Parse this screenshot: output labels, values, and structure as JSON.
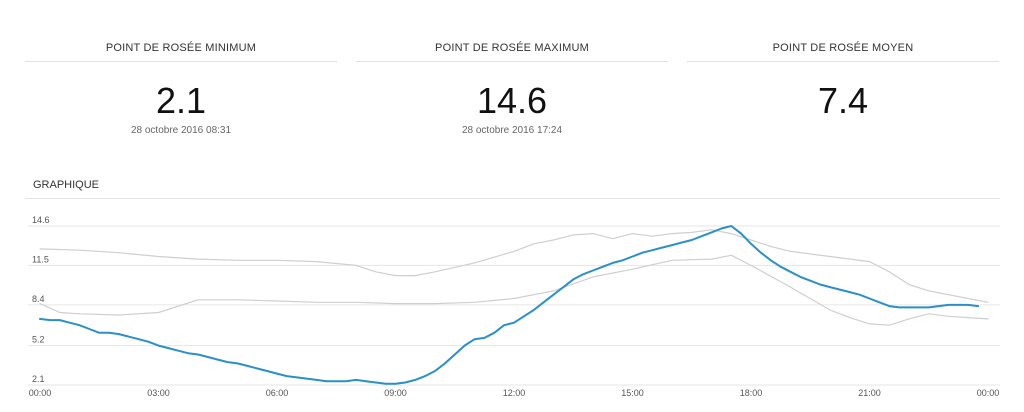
{
  "stats": [
    {
      "title": "POINT DE ROSÉE MINIMUM",
      "value": "2.1",
      "date": "28 octobre 2016 08:31"
    },
    {
      "title": "POINT DE ROSÉE MAXIMUM",
      "value": "14.6",
      "date": "28 octobre 2016 17:24"
    },
    {
      "title": "POINT DE ROSÉE MOYEN",
      "value": "7.4",
      "date": ""
    }
  ],
  "section": {
    "title": "GRAPHIQUE"
  },
  "colors": {
    "main": "#2a8fcb",
    "band": "#cfcfcf",
    "grid": "#e6e6e6",
    "axis": "#555555"
  },
  "chart_data": {
    "type": "line",
    "title": "",
    "xlabel": "",
    "ylabel": "",
    "xlim": [
      0,
      24
    ],
    "ylim": [
      2.1,
      14.6
    ],
    "yticks": [
      2.1,
      5.2,
      8.4,
      11.5,
      14.6
    ],
    "ytick_labels": [
      "2.1",
      "5.2",
      "8.4",
      "11.5",
      "14.6"
    ],
    "xticks": [
      0,
      3,
      6,
      9,
      12,
      15,
      18,
      21,
      24
    ],
    "xtick_labels": [
      "00:00",
      "03:00",
      "06:00",
      "09:00",
      "12:00",
      "15:00",
      "18:00",
      "21:00",
      "00:00"
    ],
    "grid": true,
    "series": [
      {
        "name": "",
        "role": "main",
        "x": [
          0,
          0.25,
          0.5,
          0.75,
          1,
          1.25,
          1.5,
          1.75,
          2,
          2.25,
          2.5,
          2.75,
          3,
          3.25,
          3.5,
          3.75,
          4,
          4.25,
          4.5,
          4.75,
          5,
          5.25,
          5.5,
          5.75,
          6,
          6.25,
          6.5,
          6.75,
          7,
          7.25,
          7.5,
          7.75,
          8,
          8.25,
          8.5,
          8.75,
          9,
          9.25,
          9.5,
          9.75,
          10,
          10.25,
          10.5,
          10.75,
          11,
          11.25,
          11.5,
          11.75,
          12,
          12.25,
          12.5,
          12.75,
          13,
          13.25,
          13.5,
          13.75,
          14,
          14.25,
          14.5,
          14.75,
          15,
          15.25,
          15.5,
          15.75,
          16,
          16.25,
          16.5,
          16.75,
          17,
          17.25,
          17.5,
          17.75,
          18,
          18.25,
          18.5,
          18.75,
          19,
          19.25,
          19.5,
          19.75,
          20,
          20.25,
          20.5,
          20.75,
          21,
          21.25,
          21.5,
          21.75,
          22,
          22.25,
          22.5,
          22.75,
          23,
          23.25,
          23.5,
          23.75
        ],
        "values": [
          7.3,
          7.2,
          7.2,
          7.0,
          6.8,
          6.5,
          6.2,
          6.2,
          6.1,
          5.9,
          5.7,
          5.5,
          5.2,
          5.0,
          4.8,
          4.6,
          4.5,
          4.3,
          4.1,
          3.9,
          3.8,
          3.6,
          3.4,
          3.2,
          3.0,
          2.8,
          2.7,
          2.6,
          2.5,
          2.4,
          2.4,
          2.4,
          2.5,
          2.4,
          2.3,
          2.2,
          2.2,
          2.3,
          2.5,
          2.8,
          3.2,
          3.8,
          4.5,
          5.2,
          5.7,
          5.8,
          6.2,
          6.8,
          7.0,
          7.5,
          8.0,
          8.6,
          9.2,
          9.8,
          10.4,
          10.8,
          11.1,
          11.4,
          11.7,
          11.9,
          12.2,
          12.5,
          12.7,
          12.9,
          13.1,
          13.3,
          13.5,
          13.8,
          14.1,
          14.4,
          14.6,
          14.0,
          13.2,
          12.5,
          11.9,
          11.4,
          11.0,
          10.6,
          10.3,
          10.0,
          9.8,
          9.6,
          9.4,
          9.2,
          8.9,
          8.6,
          8.3,
          8.2,
          8.2,
          8.2,
          8.2,
          8.3,
          8.4,
          8.4,
          8.4,
          8.3
        ]
      },
      {
        "name": "",
        "role": "band-upper",
        "x": [
          0,
          1,
          2,
          3,
          4,
          5,
          6,
          7,
          8,
          8.5,
          9,
          9.5,
          10,
          11,
          12,
          12.5,
          13,
          13.5,
          14,
          14.5,
          15,
          15.5,
          16,
          16.5,
          17,
          17.5,
          18,
          18.5,
          19,
          20,
          21,
          21.5,
          22,
          22.5,
          23,
          23.5,
          24
        ],
        "values": [
          12.8,
          12.7,
          12.5,
          12.2,
          12.0,
          11.9,
          11.9,
          11.8,
          11.5,
          11.0,
          10.7,
          10.7,
          11.0,
          11.7,
          12.6,
          13.2,
          13.5,
          13.9,
          14.0,
          13.6,
          14.0,
          13.8,
          14.0,
          14.1,
          14.3,
          14.0,
          13.5,
          13.0,
          12.6,
          12.2,
          11.8,
          11.0,
          10.0,
          9.5,
          9.2,
          8.9,
          8.6
        ]
      },
      {
        "name": "",
        "role": "band-lower",
        "x": [
          0,
          0.5,
          1,
          2,
          3,
          4,
          5,
          6,
          7,
          8,
          9,
          10,
          11,
          12,
          13,
          14,
          15,
          16,
          17,
          17.5,
          18,
          19,
          20,
          20.5,
          21,
          21.5,
          22,
          22.5,
          23,
          23.5,
          24
        ],
        "values": [
          8.5,
          7.8,
          7.7,
          7.6,
          7.8,
          8.8,
          8.8,
          8.7,
          8.6,
          8.6,
          8.5,
          8.5,
          8.6,
          8.9,
          9.5,
          10.6,
          11.2,
          11.9,
          12.0,
          12.3,
          11.5,
          9.8,
          8.0,
          7.4,
          6.9,
          6.8,
          7.3,
          7.7,
          7.5,
          7.4,
          7.3
        ]
      }
    ]
  }
}
